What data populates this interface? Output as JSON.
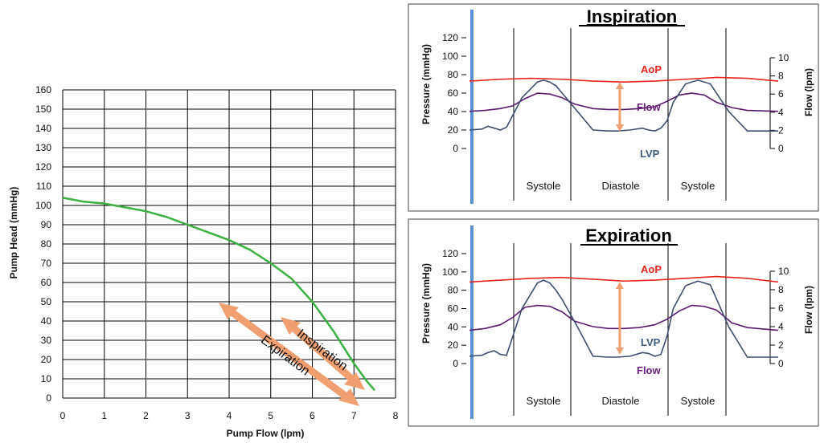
{
  "colors": {
    "pump_curve": "#3cb043",
    "arrow": "#f0a070",
    "aop": "#e8231b",
    "flow": "#5a1a6e",
    "lvp": "#3d4f6e",
    "divider": "#5b8fd6",
    "label_aop": "#e8231b",
    "label_flow": "#6a1f7a",
    "label_lvp": "#3d5a80"
  },
  "chart_data": [
    {
      "type": "line",
      "title": "",
      "xlabel": "Pump Flow (lpm)",
      "ylabel": "Pump Head (mmHg)",
      "xlim": [
        0,
        8
      ],
      "ylim": [
        0,
        160
      ],
      "x_ticks": [
        "0",
        "1",
        "2",
        "3",
        "4",
        "5",
        "6",
        "7",
        "8"
      ],
      "y_ticks": [
        "0",
        "10",
        "20",
        "30",
        "40",
        "50",
        "60",
        "70",
        "80",
        "90",
        "100",
        "110",
        "120",
        "130",
        "140",
        "150",
        "160"
      ],
      "grid": true,
      "series": [
        {
          "x": [
            0,
            0.5,
            1,
            1.5,
            2,
            2.5,
            3,
            3.5,
            4,
            4.5,
            5,
            5.5,
            6,
            6.5,
            7,
            7.3,
            7.5
          ],
          "y": [
            104,
            102,
            101,
            99,
            97,
            94,
            90,
            86,
            82,
            77,
            70,
            62,
            50,
            35,
            18,
            9,
            4
          ]
        }
      ],
      "annotations": [
        "Expiration",
        "Inspiration"
      ]
    },
    {
      "type": "line",
      "title": "Inspiration",
      "ylabel_left": "Pressure (mmHg)",
      "ylabel_right": "Flow (lpm)",
      "y_left_ticks": [
        "0",
        "20",
        "40",
        "60",
        "80",
        "100",
        "120"
      ],
      "y_right_ticks": [
        "0",
        "2",
        "4",
        "6",
        "8",
        "10"
      ],
      "ylim_left": [
        0,
        120
      ],
      "ylim_right": [
        0,
        10
      ],
      "phases": [
        "Systole",
        "Diastole",
        "Systole"
      ],
      "series_labels": [
        "AoP",
        "Flow",
        "LVP"
      ],
      "series": [
        {
          "name": "AoP",
          "t": [
            0,
            10,
            20,
            30,
            40,
            50,
            60,
            70,
            80,
            90,
            100
          ],
          "y": [
            73,
            75,
            76,
            75,
            73,
            72,
            73,
            75,
            77,
            76,
            73
          ]
        },
        {
          "name": "LVP",
          "t": [
            0,
            4,
            6,
            8,
            10,
            12,
            17,
            22,
            24,
            26,
            28,
            30,
            35,
            40,
            45,
            48,
            52,
            56,
            58,
            60,
            62,
            64,
            66,
            70,
            74,
            78,
            84,
            90,
            100
          ],
          "y": [
            20,
            21,
            24,
            22,
            20,
            23,
            55,
            72,
            74,
            72,
            68,
            60,
            40,
            20,
            19,
            19,
            20,
            22,
            20,
            19,
            22,
            30,
            50,
            70,
            74,
            70,
            40,
            19,
            19
          ]
        },
        {
          "name": "Flow",
          "unit": "lpm",
          "t": [
            0,
            5,
            10,
            14,
            18,
            22,
            26,
            30,
            34,
            40,
            45,
            50,
            55,
            60,
            64,
            68,
            72,
            76,
            80,
            85,
            90,
            100
          ],
          "y": [
            4.1,
            4.2,
            4.4,
            4.7,
            5.5,
            6.1,
            6.0,
            5.6,
            4.9,
            4.4,
            4.3,
            4.3,
            4.4,
            4.6,
            5.2,
            5.9,
            6.1,
            5.9,
            5.1,
            4.5,
            4.2,
            4.1
          ]
        }
      ]
    },
    {
      "type": "line",
      "title": "Expiration",
      "ylabel_left": "Pressure (mmHg)",
      "ylabel_right": "Flow (lpm)",
      "y_left_ticks": [
        "0",
        "20",
        "40",
        "60",
        "80",
        "100",
        "120"
      ],
      "y_right_ticks": [
        "0",
        "2",
        "4",
        "6",
        "8",
        "10"
      ],
      "ylim_left": [
        0,
        120
      ],
      "ylim_right": [
        0,
        10
      ],
      "phases": [
        "Systole",
        "Diastole",
        "Systole"
      ],
      "series_labels": [
        "AoP",
        "LVP",
        "Flow"
      ],
      "series": [
        {
          "name": "AoP",
          "t": [
            0,
            10,
            20,
            30,
            40,
            50,
            60,
            70,
            80,
            90,
            100
          ],
          "y": [
            89,
            91,
            93,
            94,
            92,
            90,
            91,
            93,
            95,
            93,
            89
          ]
        },
        {
          "name": "LVP",
          "t": [
            0,
            4,
            6,
            8,
            10,
            12,
            17,
            22,
            24,
            26,
            28,
            30,
            35,
            40,
            45,
            48,
            52,
            56,
            58,
            60,
            62,
            64,
            66,
            70,
            74,
            78,
            84,
            90,
            100
          ],
          "y": [
            8,
            9,
            12,
            14,
            10,
            9,
            60,
            88,
            91,
            88,
            80,
            70,
            40,
            8,
            7,
            7,
            8,
            12,
            11,
            8,
            10,
            30,
            60,
            85,
            90,
            86,
            40,
            7,
            7
          ]
        },
        {
          "name": "Flow",
          "unit": "lpm",
          "t": [
            0,
            5,
            10,
            14,
            18,
            22,
            26,
            30,
            34,
            40,
            45,
            50,
            55,
            60,
            64,
            68,
            72,
            76,
            80,
            85,
            90,
            100
          ],
          "y": [
            3.6,
            3.8,
            4.2,
            5.0,
            6.1,
            6.3,
            6.2,
            5.6,
            4.6,
            4.0,
            3.8,
            3.8,
            3.9,
            4.2,
            4.8,
            5.7,
            6.3,
            6.2,
            5.8,
            4.4,
            3.9,
            3.6
          ]
        }
      ]
    }
  ]
}
